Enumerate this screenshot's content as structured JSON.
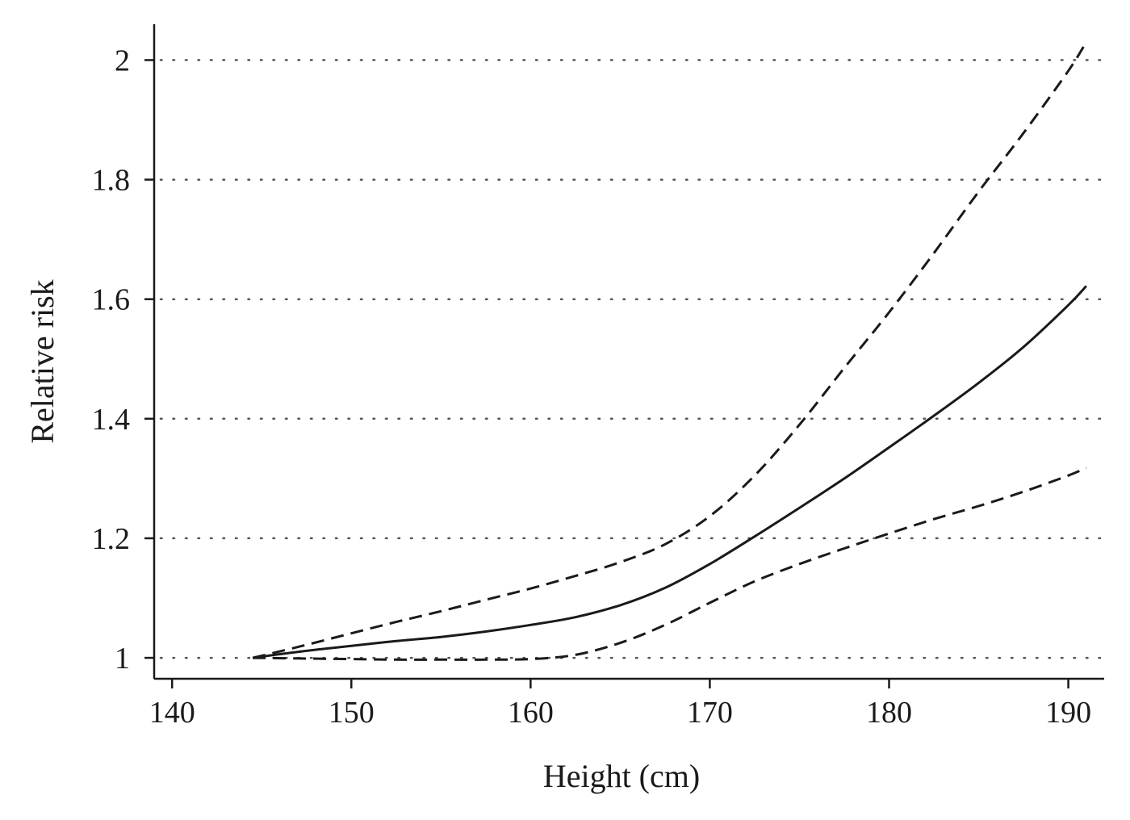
{
  "chart_data": {
    "type": "line",
    "title": "",
    "xlabel": "Height (cm)",
    "ylabel": "Relative risk",
    "xlim": [
      139,
      192
    ],
    "ylim": [
      0.965,
      2.06
    ],
    "xticks": [
      140,
      150,
      160,
      170,
      180,
      190
    ],
    "yticks": [
      1,
      1.2,
      1.4,
      1.6,
      1.8,
      2
    ],
    "ytick_labels": [
      "1",
      "1.2",
      "1.4",
      "1.6",
      "1.8",
      "2"
    ],
    "grid": "horizontal dotted",
    "legend": "none",
    "series": [
      {
        "style": "solid",
        "role": "estimate",
        "x": [
          144.5,
          147,
          150,
          152.5,
          155,
          157.5,
          160,
          162.5,
          165,
          167.5,
          170,
          172.5,
          175,
          177.5,
          180,
          182.5,
          185,
          187.5,
          190,
          191
        ],
        "y": [
          1.0,
          1.01,
          1.02,
          1.028,
          1.035,
          1.044,
          1.055,
          1.068,
          1.088,
          1.117,
          1.157,
          1.203,
          1.251,
          1.3,
          1.352,
          1.405,
          1.46,
          1.52,
          1.59,
          1.622
        ]
      },
      {
        "style": "dashed",
        "role": "upper confidence limit",
        "x": [
          144.5,
          147,
          150,
          152.5,
          155,
          157.5,
          160,
          162.5,
          165,
          167.5,
          170,
          172.5,
          175,
          177.5,
          180,
          182.5,
          185,
          187.5,
          190,
          191
        ],
        "y": [
          1.0,
          1.018,
          1.041,
          1.06,
          1.078,
          1.097,
          1.116,
          1.137,
          1.16,
          1.19,
          1.237,
          1.305,
          1.39,
          1.485,
          1.578,
          1.677,
          1.78,
          1.878,
          1.982,
          2.03
        ]
      },
      {
        "style": "dashed",
        "role": "lower confidence limit",
        "x": [
          144.5,
          147,
          150,
          152.5,
          155,
          157.5,
          160,
          162.5,
          165,
          167.5,
          170,
          172.5,
          175,
          177.5,
          180,
          182.5,
          185,
          187.5,
          190,
          191
        ],
        "y": [
          1.0,
          0.999,
          0.998,
          0.997,
          0.997,
          0.997,
          0.998,
          1.005,
          1.025,
          1.055,
          1.092,
          1.128,
          1.157,
          1.183,
          1.208,
          1.232,
          1.254,
          1.278,
          1.305,
          1.318
        ]
      }
    ]
  }
}
